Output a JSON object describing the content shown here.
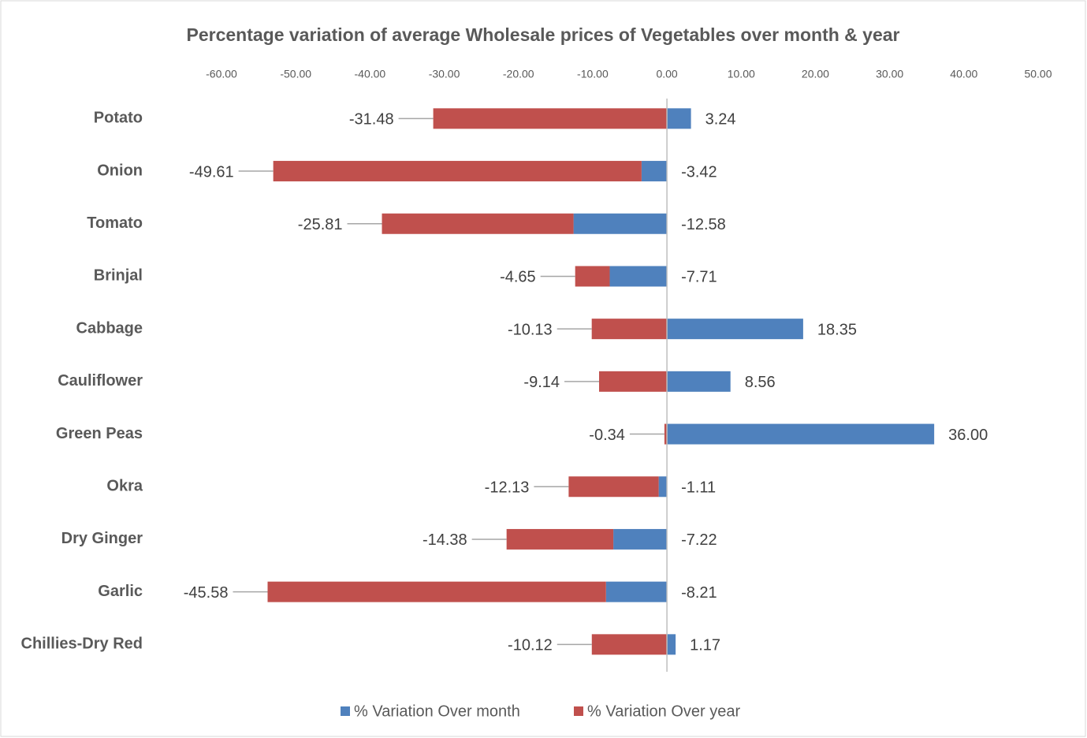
{
  "chart_data": {
    "type": "stacked-bar-horizontal",
    "title": "Percentage variation of average Wholesale prices of Vegetables over month & year",
    "categories": [
      "Potato",
      "Onion",
      "Tomato",
      "Brinjal",
      "Cabbage",
      "Cauliflower",
      "Green Peas",
      "Okra",
      "Dry Ginger",
      "Garlic",
      "Chillies-Dry Red"
    ],
    "series": [
      {
        "name": "% Variation Over month",
        "color": "#4f81bd",
        "values": [
          3.24,
          -3.42,
          -12.58,
          -7.71,
          18.35,
          8.56,
          36.0,
          -1.11,
          -7.22,
          -8.21,
          1.17
        ],
        "value_labels": [
          "3.24",
          "-3.42",
          "-12.58",
          "-7.71",
          "18.35",
          "8.56",
          "36.00",
          "-1.11",
          "-7.22",
          "-8.21",
          "1.17"
        ]
      },
      {
        "name": "% Variation Over year",
        "color": "#c0504d",
        "values": [
          -31.48,
          -49.61,
          -25.81,
          -4.65,
          -10.13,
          -9.14,
          -0.34,
          -12.13,
          -14.38,
          -45.58,
          -10.12
        ],
        "value_labels": [
          "-31.48",
          "-49.61",
          "-25.81",
          "-4.65",
          "-10.13",
          "-9.14",
          "-0.34",
          "-12.13",
          "-14.38",
          "-45.58",
          "-10.12"
        ]
      }
    ],
    "xlim": [
      -60,
      50
    ],
    "xticks": [
      {
        "value": -60,
        "label": "-60.00"
      },
      {
        "value": -50,
        "label": "-50.00"
      },
      {
        "value": -40,
        "label": "-40.00"
      },
      {
        "value": -30,
        "label": "-30.00"
      },
      {
        "value": -20,
        "label": "-20.00"
      },
      {
        "value": -10,
        "label": "-10.00"
      },
      {
        "value": 0,
        "label": "0.00"
      },
      {
        "value": 10,
        "label": "10.00"
      },
      {
        "value": 20,
        "label": "20.00"
      },
      {
        "value": 30,
        "label": "30.00"
      },
      {
        "value": 40,
        "label": "40.00"
      },
      {
        "value": 50,
        "label": "50.00"
      }
    ],
    "legend": "bottom",
    "grid": false
  }
}
